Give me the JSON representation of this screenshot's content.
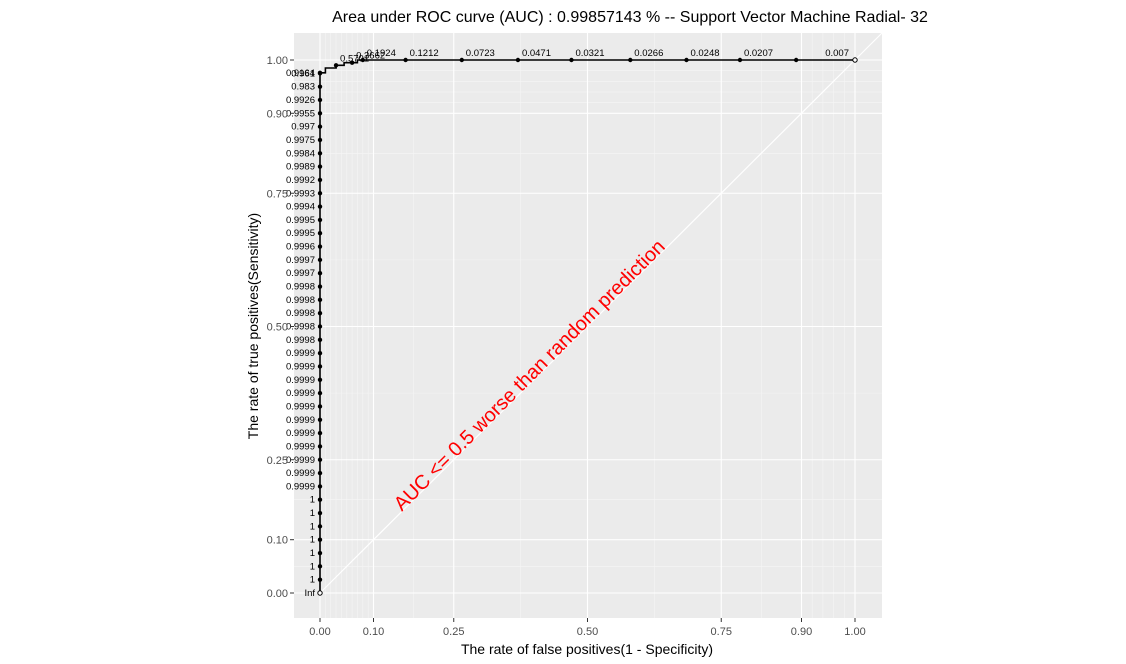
{
  "chart_data": {
    "type": "line",
    "title": "Area under ROC curve (AUC) :  0.99857143 % -- Support Vector Machine Radial- 32",
    "xlabel": "The rate of false positives(1 - Specificity)",
    "ylabel": "The rate of true positives(Sensitivity)",
    "xlim": [
      0,
      1
    ],
    "ylim": [
      0,
      1
    ],
    "x_ticks": [
      0.0,
      0.1,
      0.25,
      0.5,
      0.75,
      0.9,
      1.0
    ],
    "x_tick_labels": [
      "0.00",
      "0.10",
      "0.25",
      "0.50",
      "0.75",
      "0.90",
      "1.00"
    ],
    "y_ticks": [
      0.0,
      0.1,
      0.25,
      0.5,
      0.75,
      0.9,
      1.0
    ],
    "y_tick_labels": [
      "0.00",
      "0.10",
      "0.25",
      "0.50",
      "0.75",
      "0.90",
      "1.00"
    ],
    "grid": true,
    "background": "#ebebeb",
    "line_color": "#000000",
    "annotation": {
      "text": "AUC <= 0.5 worse than random prediction",
      "color": "#ff0000"
    },
    "roc_points": [
      {
        "x": 0.0,
        "y": 0.0,
        "label": "Inf"
      },
      {
        "x": 0.0,
        "y": 0.025,
        "label": "1"
      },
      {
        "x": 0.0,
        "y": 0.05,
        "label": "1"
      },
      {
        "x": 0.0,
        "y": 0.075,
        "label": "1"
      },
      {
        "x": 0.0,
        "y": 0.1,
        "label": "1"
      },
      {
        "x": 0.0,
        "y": 0.125,
        "label": "1"
      },
      {
        "x": 0.0,
        "y": 0.15,
        "label": "1"
      },
      {
        "x": 0.0,
        "y": 0.175,
        "label": "1"
      },
      {
        "x": 0.0,
        "y": 0.2,
        "label": "0.9999"
      },
      {
        "x": 0.0,
        "y": 0.225,
        "label": "0.9999"
      },
      {
        "x": 0.0,
        "y": 0.25,
        "label": "0.9999"
      },
      {
        "x": 0.0,
        "y": 0.275,
        "label": "0.9999"
      },
      {
        "x": 0.0,
        "y": 0.3,
        "label": "0.9999"
      },
      {
        "x": 0.0,
        "y": 0.325,
        "label": "0.9999"
      },
      {
        "x": 0.0,
        "y": 0.35,
        "label": "0.9999"
      },
      {
        "x": 0.0,
        "y": 0.375,
        "label": "0.9999"
      },
      {
        "x": 0.0,
        "y": 0.4,
        "label": "0.9999"
      },
      {
        "x": 0.0,
        "y": 0.425,
        "label": "0.9999"
      },
      {
        "x": 0.0,
        "y": 0.45,
        "label": "0.9999"
      },
      {
        "x": 0.0,
        "y": 0.475,
        "label": "0.9998"
      },
      {
        "x": 0.0,
        "y": 0.5,
        "label": "0.9998"
      },
      {
        "x": 0.0,
        "y": 0.525,
        "label": "0.9998"
      },
      {
        "x": 0.0,
        "y": 0.55,
        "label": "0.9998"
      },
      {
        "x": 0.0,
        "y": 0.575,
        "label": "0.9998"
      },
      {
        "x": 0.0,
        "y": 0.6,
        "label": "0.9997"
      },
      {
        "x": 0.0,
        "y": 0.625,
        "label": "0.9997"
      },
      {
        "x": 0.0,
        "y": 0.65,
        "label": "0.9996"
      },
      {
        "x": 0.0,
        "y": 0.675,
        "label": "0.9995"
      },
      {
        "x": 0.0,
        "y": 0.7,
        "label": "0.9995"
      },
      {
        "x": 0.0,
        "y": 0.725,
        "label": "0.9994"
      },
      {
        "x": 0.0,
        "y": 0.75,
        "label": "0.9993"
      },
      {
        "x": 0.0,
        "y": 0.775,
        "label": "0.9992"
      },
      {
        "x": 0.0,
        "y": 0.8,
        "label": "0.9989"
      },
      {
        "x": 0.0,
        "y": 0.825,
        "label": "0.9984"
      },
      {
        "x": 0.0,
        "y": 0.85,
        "label": "0.9975"
      },
      {
        "x": 0.0,
        "y": 0.875,
        "label": "0.997"
      },
      {
        "x": 0.0,
        "y": 0.9,
        "label": "0.9955"
      },
      {
        "x": 0.0,
        "y": 0.925,
        "label": "0.9926"
      },
      {
        "x": 0.0,
        "y": 0.95,
        "label": "0.983"
      },
      {
        "x": 0.0,
        "y": 0.975,
        "label": "0.961"
      },
      {
        "x": 0.0,
        "y": 0.976,
        "label": "0.9164"
      },
      {
        "x": 0.03,
        "y": 0.99,
        "label": "0.5701"
      },
      {
        "x": 0.06,
        "y": 0.995,
        "label": "0.3662"
      },
      {
        "x": 0.08,
        "y": 1.0,
        "label": "0.1924"
      },
      {
        "x": 0.16,
        "y": 1.0,
        "label": "0.1212"
      },
      {
        "x": 0.265,
        "y": 1.0,
        "label": "0.0723"
      },
      {
        "x": 0.37,
        "y": 1.0,
        "label": "0.0471"
      },
      {
        "x": 0.47,
        "y": 1.0,
        "label": "0.0321"
      },
      {
        "x": 0.58,
        "y": 1.0,
        "label": "0.0266"
      },
      {
        "x": 0.685,
        "y": 1.0,
        "label": "0.0248"
      },
      {
        "x": 0.785,
        "y": 1.0,
        "label": "0.0207"
      },
      {
        "x": 0.89,
        "y": 1.0,
        "label": ""
      },
      {
        "x": 1.0,
        "y": 1.0,
        "label": "0.007"
      }
    ],
    "step_path": [
      [
        0.0,
        0.976
      ],
      [
        0.01,
        0.976
      ],
      [
        0.01,
        0.985
      ],
      [
        0.03,
        0.985
      ],
      [
        0.03,
        0.99
      ],
      [
        0.045,
        0.99
      ],
      [
        0.045,
        0.995
      ],
      [
        0.06,
        0.995
      ],
      [
        0.07,
        0.995
      ],
      [
        0.07,
        1.0
      ],
      [
        1.0,
        1.0
      ]
    ]
  }
}
